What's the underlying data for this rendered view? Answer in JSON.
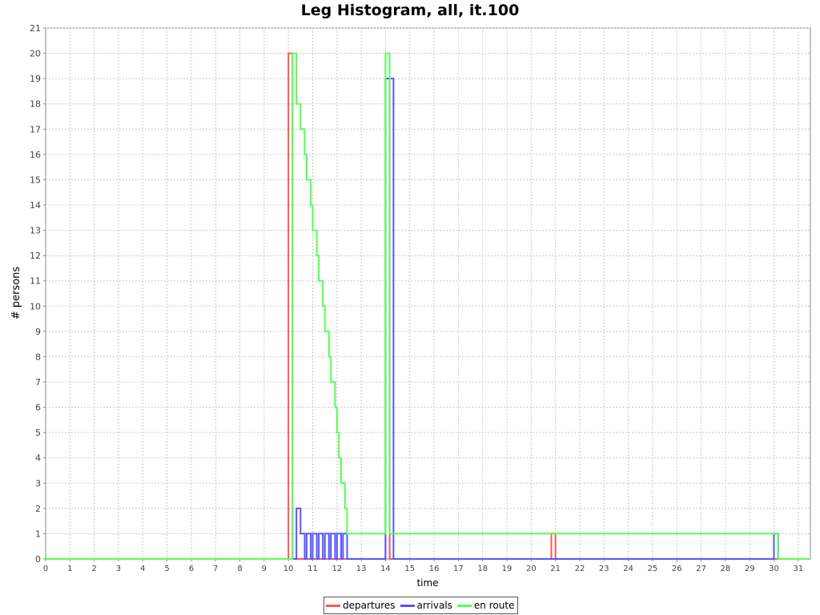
{
  "chart_data": {
    "type": "line",
    "title": "Leg Histogram, all, it.100",
    "xlabel": "time",
    "ylabel": "# persons",
    "xlim": [
      0,
      31.5
    ],
    "ylim": [
      0,
      21
    ],
    "xticks": [
      "0",
      "1",
      "2",
      "3",
      "4",
      "5",
      "6",
      "7",
      "8",
      "9",
      "10",
      "11",
      "12",
      "13",
      "14",
      "15",
      "16",
      "17",
      "18",
      "19",
      "20",
      "21",
      "22",
      "23",
      "24",
      "25",
      "26",
      "27",
      "28",
      "29",
      "30",
      "31"
    ],
    "yticks": [
      "0",
      "1",
      "2",
      "3",
      "4",
      "5",
      "6",
      "7",
      "8",
      "9",
      "10",
      "11",
      "12",
      "13",
      "14",
      "15",
      "16",
      "17",
      "18",
      "19",
      "20",
      "21"
    ],
    "grid": true,
    "legend_position": "bottom",
    "series": [
      {
        "name": "departures",
        "color": "#ff5555",
        "points": [
          [
            0,
            0
          ],
          [
            10.0,
            0
          ],
          [
            10.0,
            20
          ],
          [
            10.17,
            20
          ],
          [
            10.17,
            0
          ],
          [
            14.0,
            0
          ],
          [
            14.0,
            19
          ],
          [
            14.17,
            19
          ],
          [
            14.17,
            0
          ],
          [
            20.83,
            0
          ],
          [
            20.83,
            1
          ],
          [
            21.0,
            1
          ],
          [
            21.0,
            0
          ],
          [
            31.5,
            0
          ]
        ]
      },
      {
        "name": "arrivals",
        "color": "#5555ff",
        "points": [
          [
            0,
            0
          ],
          [
            10.33,
            0
          ],
          [
            10.33,
            2
          ],
          [
            10.5,
            2
          ],
          [
            10.5,
            1
          ],
          [
            10.67,
            1
          ],
          [
            10.67,
            0
          ],
          [
            10.75,
            0
          ],
          [
            10.75,
            1
          ],
          [
            10.92,
            1
          ],
          [
            10.92,
            0
          ],
          [
            11.0,
            0
          ],
          [
            11.0,
            1
          ],
          [
            11.17,
            1
          ],
          [
            11.17,
            0
          ],
          [
            11.25,
            0
          ],
          [
            11.25,
            1
          ],
          [
            11.42,
            1
          ],
          [
            11.42,
            0
          ],
          [
            11.5,
            0
          ],
          [
            11.5,
            1
          ],
          [
            11.67,
            1
          ],
          [
            11.67,
            0
          ],
          [
            11.75,
            0
          ],
          [
            11.75,
            1
          ],
          [
            11.92,
            1
          ],
          [
            11.92,
            0
          ],
          [
            12.0,
            0
          ],
          [
            12.0,
            1
          ],
          [
            12.17,
            1
          ],
          [
            12.17,
            0
          ],
          [
            12.25,
            0
          ],
          [
            12.25,
            1
          ],
          [
            12.42,
            1
          ],
          [
            12.42,
            0
          ],
          [
            14.0,
            0
          ],
          [
            14.0,
            19
          ],
          [
            14.33,
            19
          ],
          [
            14.33,
            0
          ],
          [
            30.0,
            0
          ],
          [
            30.0,
            1
          ],
          [
            30.17,
            1
          ],
          [
            30.17,
            0
          ],
          [
            31.5,
            0
          ]
        ]
      },
      {
        "name": "en route",
        "color": "#55ff55",
        "points": [
          [
            0,
            0
          ],
          [
            10.17,
            0
          ],
          [
            10.17,
            20
          ],
          [
            10.33,
            20
          ],
          [
            10.33,
            18
          ],
          [
            10.5,
            18
          ],
          [
            10.5,
            17
          ],
          [
            10.67,
            17
          ],
          [
            10.67,
            16
          ],
          [
            10.75,
            16
          ],
          [
            10.75,
            15
          ],
          [
            10.92,
            15
          ],
          [
            10.92,
            14
          ],
          [
            11.0,
            14
          ],
          [
            11.0,
            13
          ],
          [
            11.17,
            13
          ],
          [
            11.17,
            12
          ],
          [
            11.25,
            12
          ],
          [
            11.25,
            11
          ],
          [
            11.42,
            11
          ],
          [
            11.42,
            10
          ],
          [
            11.5,
            10
          ],
          [
            11.5,
            9
          ],
          [
            11.67,
            9
          ],
          [
            11.67,
            8
          ],
          [
            11.75,
            8
          ],
          [
            11.75,
            7
          ],
          [
            11.92,
            7
          ],
          [
            11.92,
            6
          ],
          [
            12.0,
            6
          ],
          [
            12.0,
            5
          ],
          [
            12.08,
            5
          ],
          [
            12.08,
            4
          ],
          [
            12.17,
            4
          ],
          [
            12.17,
            3
          ],
          [
            12.33,
            3
          ],
          [
            12.33,
            2
          ],
          [
            12.42,
            2
          ],
          [
            12.42,
            1
          ],
          [
            14.0,
            1
          ],
          [
            14.0,
            20
          ],
          [
            14.17,
            20
          ],
          [
            14.17,
            1
          ],
          [
            30.17,
            1
          ],
          [
            30.17,
            0
          ],
          [
            31.5,
            0
          ]
        ]
      }
    ]
  }
}
